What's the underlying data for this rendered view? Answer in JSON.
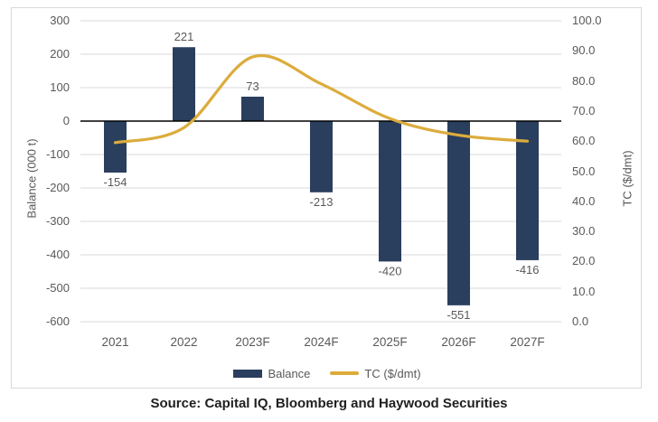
{
  "source_text": "Source: Capital IQ, Bloomberg and Haywood Securities",
  "colors": {
    "bar": "#2A3E5E",
    "line": "#DCAC3C",
    "gridline": "#D9D9D9",
    "zero_axis": "#000000",
    "axis_text": "#595959",
    "data_label_text": "#595959",
    "frame_border": "#D9D9D9"
  },
  "chart_data": {
    "type": "combo-bar-line",
    "title": "",
    "categories": [
      "2021",
      "2022",
      "2023F",
      "2024F",
      "2025F",
      "2026F",
      "2027F"
    ],
    "series": [
      {
        "name": "Balance",
        "type": "bar",
        "axis": "left",
        "color": "#2A3E5E",
        "values": [
          -154,
          221,
          73,
          -213,
          -420,
          -551,
          -416
        ],
        "data_labels": [
          "-154",
          "221",
          "73",
          "-213",
          "-420",
          "-551",
          "-416"
        ]
      },
      {
        "name": "TC ($/dmt)",
        "type": "line",
        "axis": "right",
        "color": "#DCAC3C",
        "smoothed": true,
        "values": [
          59.5,
          64.5,
          88,
          79,
          67.5,
          62,
          60
        ]
      }
    ],
    "left_axis": {
      "title": "Balance (000 t)",
      "min": -600,
      "max": 300,
      "tick_labels": [
        "300",
        "200",
        "100",
        "0",
        "-100",
        "-200",
        "-300",
        "-400",
        "-500",
        "-600"
      ]
    },
    "right_axis": {
      "title": "TC ($/dmt)",
      "min": 0,
      "max": 100,
      "tick_labels": [
        "100.0",
        "90.0",
        "80.0",
        "70.0",
        "60.0",
        "50.0",
        "40.0",
        "30.0",
        "20.0",
        "10.0",
        "0.0"
      ]
    },
    "legend": {
      "position": "bottom",
      "entries": [
        "Balance",
        "TC ($/dmt)"
      ]
    },
    "grid": true
  }
}
